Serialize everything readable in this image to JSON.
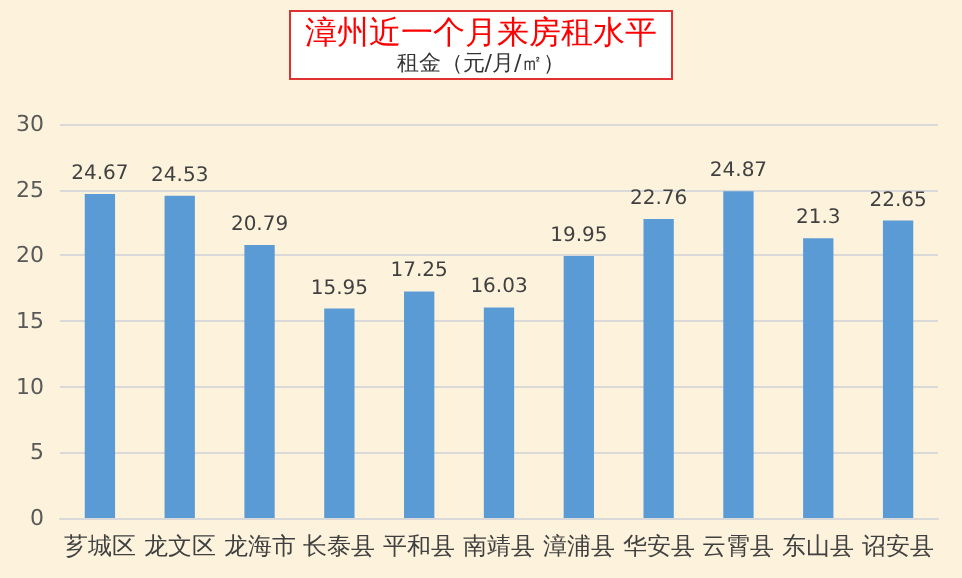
{
  "chart_data": {
    "type": "bar",
    "title": "漳州近一个月来房租水平",
    "subtitle": "租金（元/月/㎡）",
    "categories": [
      "芗城区",
      "龙文区",
      "龙海市",
      "长泰县",
      "平和县",
      "南靖县",
      "漳浦县",
      "华安县",
      "云霄县",
      "东山县",
      "诏安县"
    ],
    "values": [
      24.67,
      24.53,
      20.79,
      15.95,
      17.25,
      16.03,
      19.95,
      22.76,
      24.87,
      21.3,
      22.65
    ],
    "color": "#5b9bd5",
    "ylim": [
      0,
      30
    ],
    "yticks": [
      0,
      5,
      10,
      15,
      20,
      25,
      30
    ],
    "grid": "y",
    "data_labels": true
  }
}
